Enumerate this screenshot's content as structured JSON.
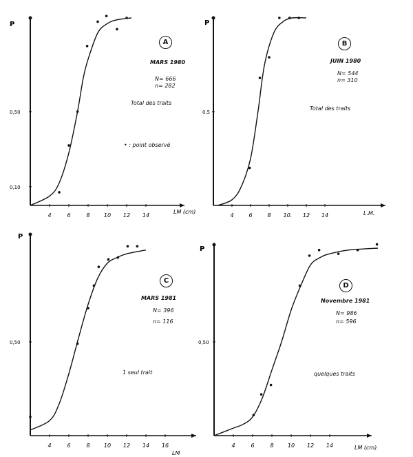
{
  "chart_data": [
    {
      "type": "line",
      "panel_label": "A",
      "title": "MARS 1980",
      "N": "N= 666",
      "n": "n= 282",
      "note": "Total des traits",
      "legend": "• : point observé",
      "ylabel": "P",
      "xlabel": "LM (cm)",
      "xlim": [
        2,
        16
      ],
      "ylim": [
        0,
        1
      ],
      "xticks": [
        "4",
        "6",
        "8",
        "10",
        "12",
        "14"
      ],
      "xtick_values": [
        4,
        6,
        8,
        10,
        12,
        14
      ],
      "yticks": [
        "0,10",
        "0,50"
      ],
      "ytick_values": [
        0.1,
        0.5
      ],
      "points": {
        "x": [
          5,
          6,
          6.9,
          7.9,
          9,
          9.9,
          11,
          12
        ],
        "y": [
          0.07,
          0.32,
          0.5,
          0.85,
          0.98,
          1.01,
          0.94,
          1.0
        ]
      },
      "curve": {
        "x": [
          2,
          4,
          5,
          6,
          6.9,
          7.5,
          8,
          9,
          10,
          11,
          12.5
        ],
        "y": [
          0,
          0.05,
          0.12,
          0.28,
          0.5,
          0.68,
          0.78,
          0.92,
          0.97,
          0.99,
          1.0
        ]
      }
    },
    {
      "type": "line",
      "panel_label": "B",
      "title": "JUIN 1980",
      "N": "N= 544",
      "n": "n= 310",
      "note": "Total des traits",
      "ylabel": "P",
      "xlabel": "L.M.",
      "xlim": [
        2,
        20
      ],
      "ylim": [
        0,
        1
      ],
      "xticks": [
        "4",
        "6",
        "8",
        "10.",
        "12",
        "14"
      ],
      "xtick_values": [
        4,
        6,
        8,
        10,
        12,
        14
      ],
      "yticks": [
        "0,5"
      ],
      "ytick_values": [
        0.5
      ],
      "points": {
        "x": [
          5.9,
          7,
          8,
          9.1,
          10.2,
          11.2
        ],
        "y": [
          0.2,
          0.68,
          0.79,
          1.0,
          1.0,
          1.0
        ]
      },
      "curve": {
        "x": [
          2.5,
          4,
          5,
          6,
          6.8,
          7.5,
          8.5,
          9.5,
          10.5,
          12
        ],
        "y": [
          0,
          0.03,
          0.1,
          0.25,
          0.5,
          0.75,
          0.92,
          0.98,
          1.0,
          1.0
        ]
      }
    },
    {
      "type": "line",
      "panel_label": "C",
      "title": "MARS 1981",
      "N": "N= 396",
      "n": "n= 116",
      "note": "1 seul trait",
      "ylabel": "P",
      "xlabel": "LM",
      "xlim": [
        2,
        18
      ],
      "ylim": [
        0,
        1
      ],
      "xticks": [
        "4",
        "6",
        "8",
        "10",
        "12",
        "14",
        "16"
      ],
      "xtick_values": [
        4,
        6,
        8,
        10,
        12,
        14,
        16
      ],
      "yticks": [
        "0,50"
      ],
      "ytick_values": [
        0.5
      ],
      "points": {
        "x": [
          2,
          6.9,
          8,
          8.6,
          9.1,
          10.1,
          11.1,
          12.1,
          13.1
        ],
        "y": [
          0.1,
          0.49,
          0.68,
          0.8,
          0.9,
          0.94,
          0.95,
          1.01,
          1.01
        ]
      },
      "curve": {
        "x": [
          2,
          4,
          5,
          6,
          7,
          8,
          9,
          10,
          11,
          12,
          14
        ],
        "y": [
          0.03,
          0.08,
          0.17,
          0.33,
          0.52,
          0.7,
          0.84,
          0.92,
          0.95,
          0.97,
          0.99
        ]
      }
    },
    {
      "type": "line",
      "panel_label": "D",
      "title": "Novembre 1981",
      "N": "N= 986",
      "n": "n= 596",
      "note": "quelques traits",
      "ylabel": "P",
      "xlabel": "LM (cm)",
      "xlim": [
        2,
        19
      ],
      "ylim": [
        0,
        1
      ],
      "xticks": [
        "4",
        "6",
        "8",
        "10",
        "12",
        "14"
      ],
      "xtick_values": [
        4,
        6,
        8,
        10,
        12,
        14
      ],
      "yticks": [
        "0,50"
      ],
      "ytick_values": [
        0.5
      ],
      "points": {
        "x": [
          6.1,
          6.9,
          7.9,
          10.9,
          11.9,
          12.9,
          14.9,
          16.9,
          18.9
        ],
        "y": [
          0.11,
          0.22,
          0.27,
          0.8,
          0.96,
          0.99,
          0.97,
          0.99,
          1.02
        ]
      },
      "curve": {
        "x": [
          2,
          4,
          5,
          6,
          7,
          8,
          9,
          10,
          11,
          12,
          13,
          14,
          16,
          19
        ],
        "y": [
          0,
          0.04,
          0.06,
          0.1,
          0.2,
          0.35,
          0.5,
          0.67,
          0.8,
          0.91,
          0.95,
          0.97,
          0.99,
          1.0
        ]
      }
    }
  ]
}
